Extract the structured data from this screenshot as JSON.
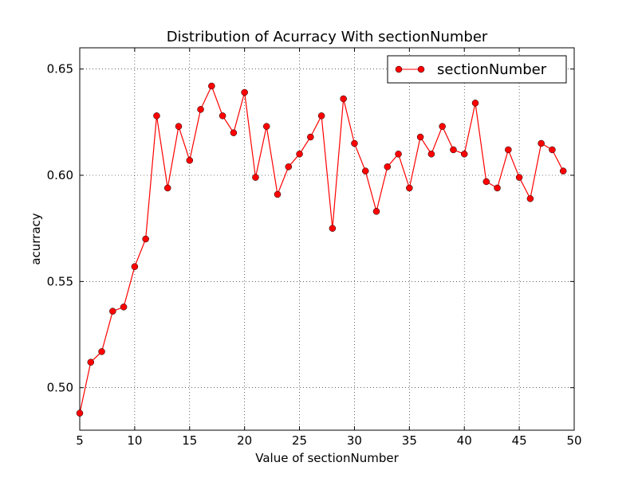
{
  "chart_data": {
    "type": "line",
    "title": "Distribution of Acurracy With sectionNumber",
    "xlabel": "Value of sectionNumber",
    "ylabel": "acurracy",
    "xlim": [
      5,
      50
    ],
    "ylim": [
      0.48,
      0.66
    ],
    "xticks": [
      5,
      10,
      15,
      20,
      25,
      30,
      35,
      40,
      45,
      50
    ],
    "yticks": [
      0.5,
      0.55,
      0.6,
      0.65
    ],
    "xtick_labels": [
      "5",
      "10",
      "15",
      "20",
      "25",
      "30",
      "35",
      "40",
      "45",
      "50"
    ],
    "ytick_labels": [
      "0.50",
      "0.55",
      "0.60",
      "0.65"
    ],
    "grid": true,
    "legend_position": "top-right",
    "series": [
      {
        "name": "sectionNumber",
        "color": "#ff0000",
        "marker": "circle",
        "x": [
          5,
          6,
          7,
          8,
          9,
          10,
          11,
          12,
          13,
          14,
          15,
          16,
          17,
          18,
          19,
          20,
          21,
          22,
          23,
          24,
          25,
          26,
          27,
          28,
          29,
          30,
          31,
          32,
          33,
          34,
          35,
          36,
          37,
          38,
          39,
          40,
          41,
          42,
          43,
          44,
          45,
          46,
          47,
          48,
          49
        ],
        "y": [
          0.488,
          0.512,
          0.517,
          0.536,
          0.538,
          0.557,
          0.57,
          0.628,
          0.594,
          0.623,
          0.607,
          0.631,
          0.642,
          0.628,
          0.62,
          0.639,
          0.599,
          0.623,
          0.591,
          0.604,
          0.61,
          0.618,
          0.628,
          0.575,
          0.636,
          0.615,
          0.602,
          0.583,
          0.604,
          0.61,
          0.594,
          0.618,
          0.61,
          0.623,
          0.612,
          0.61,
          0.634,
          0.597,
          0.594,
          0.612,
          0.599,
          0.589,
          0.615,
          0.612,
          0.602
        ]
      }
    ]
  }
}
